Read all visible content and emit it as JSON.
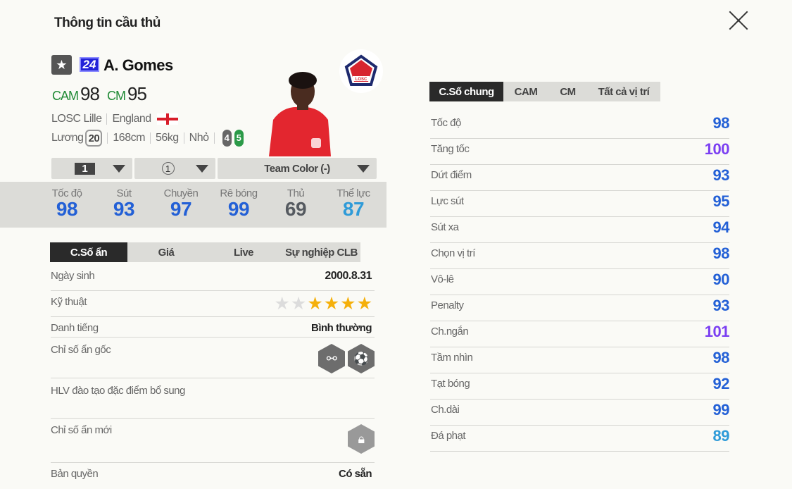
{
  "header": {
    "title": "Thông tin cầu thủ",
    "close_icon": "close-icon"
  },
  "player": {
    "name": "A. Gomes",
    "season_badge": "24",
    "favorite_icon": "star-icon",
    "positions": [
      {
        "pos": "CAM",
        "ovr": "98"
      },
      {
        "pos": "CM",
        "ovr": "95"
      }
    ],
    "club": "LOSC Lille",
    "nation": "England",
    "salary_label": "Lương",
    "salary": "20",
    "height": "168cm",
    "weight": "56kg",
    "body_type": "Nhỏ",
    "weak_foot": "4",
    "skill_foot": "5",
    "club_logo_text": "LOSC"
  },
  "dropdowns": {
    "upgrade": "1",
    "level": "1",
    "team_color": "Team Color (-)"
  },
  "summary_stats": [
    {
      "label": "Tốc độ",
      "value": "98",
      "color": "#2360d6"
    },
    {
      "label": "Sút",
      "value": "93",
      "color": "#2360d6"
    },
    {
      "label": "Chuyền",
      "value": "97",
      "color": "#2360d6"
    },
    {
      "label": "Rê bóng",
      "value": "99",
      "color": "#2360d6"
    },
    {
      "label": "Thủ",
      "value": "69",
      "color": "#555a60"
    },
    {
      "label": "Thể lực",
      "value": "87",
      "color": "#2f9bd8"
    }
  ],
  "left_tabs": [
    "C.Số ẩn",
    "Giá",
    "Live",
    "Sự nghiệp CLB"
  ],
  "details": {
    "birth_label": "Ngày sinh",
    "birth": "2000.8.31",
    "skill_label": "Kỹ thuật",
    "skill_stars": 4,
    "skill_max": 6,
    "rep_label": "Danh tiếng",
    "rep": "Bình thường",
    "traits_label": "Chỉ số ẩn gốc",
    "traits_icons": [
      "dribbler-trait-icon",
      "finesse-shot-trait-icon"
    ],
    "coach_label": "HLV đào tạo đặc điểm bổ sung",
    "new_traits_label": "Chỉ số ẩn mới",
    "new_traits_icon": "lock-icon",
    "license_label": "Bản quyền",
    "license": "Có sẵn"
  },
  "right_tabs": [
    "C.Số chung",
    "CAM",
    "CM",
    "Tất cả vị trí"
  ],
  "attributes": [
    {
      "label": "Tốc độ",
      "value": "98",
      "color": "#2360d6"
    },
    {
      "label": "Tăng tốc",
      "value": "100",
      "color": "#7b3ff2"
    },
    {
      "label": "Dứt điểm",
      "value": "93",
      "color": "#2360d6"
    },
    {
      "label": "Lực sút",
      "value": "95",
      "color": "#2360d6"
    },
    {
      "label": "Sút xa",
      "value": "94",
      "color": "#2360d6"
    },
    {
      "label": "Chọn vị trí",
      "value": "98",
      "color": "#2360d6"
    },
    {
      "label": "Vô-lê",
      "value": "90",
      "color": "#2360d6"
    },
    {
      "label": "Penalty",
      "value": "93",
      "color": "#2360d6"
    },
    {
      "label": "Ch.ngắn",
      "value": "101",
      "color": "#7b3ff2"
    },
    {
      "label": "Tầm nhìn",
      "value": "98",
      "color": "#2360d6"
    },
    {
      "label": "Tạt bóng",
      "value": "92",
      "color": "#2360d6"
    },
    {
      "label": "Ch.dài",
      "value": "99",
      "color": "#2360d6"
    },
    {
      "label": "Đá phạt",
      "value": "89",
      "color": "#2f9bd8"
    }
  ]
}
